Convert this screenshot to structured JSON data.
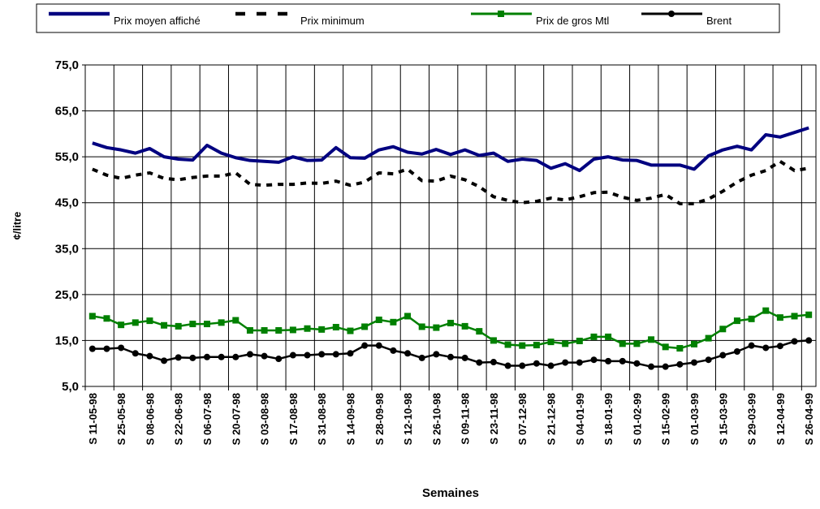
{
  "chart_data": {
    "type": "line",
    "ylabel": "¢/litre",
    "xlabel": "Semaines",
    "categories": [
      "S 11-05-98",
      null,
      "S 25-05-98",
      null,
      "S 08-06-98",
      null,
      "S 22-06-98",
      null,
      "S 06-07-98",
      null,
      "S 20-07-98",
      null,
      "S 03-08-98",
      null,
      "S 17-08-98",
      null,
      "S 31-08-98",
      null,
      "S 14-09-98",
      null,
      "S 28-09-98",
      null,
      "S 12-10-98",
      null,
      "S 26-10-98",
      null,
      "S 09-11-98",
      null,
      "S 23-11-98",
      null,
      "S 07-12-98",
      null,
      "S 21-12-98",
      null,
      "S 04-01-99",
      null,
      "S 18-01-99",
      null,
      "S 01-02-99",
      null,
      "S 15-02-99",
      null,
      "S 01-03-99",
      null,
      "S 15-03-99",
      null,
      "S 29-03-99",
      null,
      "S 12-04-99",
      null,
      "S 26-04-99"
    ],
    "ylim": [
      5,
      75
    ],
    "yticks": [
      {
        "value": 5,
        "label": "5,0"
      },
      {
        "value": 15,
        "label": "15,0"
      },
      {
        "value": 25,
        "label": "25,0"
      },
      {
        "value": 35,
        "label": "35,0"
      },
      {
        "value": 45,
        "label": "45,0"
      },
      {
        "value": 55,
        "label": "55,0"
      },
      {
        "value": 65,
        "label": "65,0"
      },
      {
        "value": 75,
        "label": "75,0"
      }
    ],
    "grid": true,
    "legend": "top",
    "series": [
      {
        "name": "Prix moyen affiché",
        "color": "#000080",
        "dash": false,
        "marker": "none",
        "width": 4,
        "values": [
          58.0,
          57.0,
          56.5,
          55.8,
          56.8,
          55.0,
          54.5,
          54.3,
          57.5,
          55.8,
          54.8,
          54.2,
          54.0,
          53.8,
          55.0,
          54.2,
          54.3,
          57.0,
          54.8,
          54.7,
          56.5,
          57.2,
          56.0,
          55.6,
          56.6,
          55.5,
          56.5,
          55.3,
          55.8,
          54.0,
          54.5,
          54.2,
          52.5,
          53.5,
          52.0,
          54.5,
          55.0,
          54.3,
          54.2,
          53.2,
          53.2,
          53.2,
          52.3,
          55.2,
          56.5,
          57.3,
          56.5,
          59.8,
          59.3,
          60.3,
          61.3
        ]
      },
      {
        "name": "Prix minimum",
        "color": "#000000",
        "dash": true,
        "marker": "none",
        "width": 4,
        "values": [
          52.3,
          51.0,
          50.3,
          51.0,
          51.5,
          50.3,
          50.0,
          50.5,
          50.8,
          50.8,
          51.5,
          49.0,
          48.8,
          49.0,
          49.0,
          49.3,
          49.2,
          49.7,
          48.8,
          49.5,
          51.5,
          51.3,
          52.3,
          49.8,
          49.7,
          50.8,
          50.0,
          48.5,
          46.3,
          45.5,
          45.0,
          45.3,
          46.0,
          45.6,
          46.3,
          47.2,
          47.3,
          46.2,
          45.5,
          46.0,
          46.8,
          44.8,
          44.8,
          45.8,
          47.5,
          49.5,
          51.0,
          52.0,
          54.0,
          52.0,
          52.5
        ]
      },
      {
        "name": "Prix de gros Mtl",
        "color": "#008000",
        "dash": false,
        "marker": "square",
        "width": 2.5,
        "values": [
          20.3,
          19.8,
          18.4,
          18.9,
          19.3,
          18.3,
          18.1,
          18.6,
          18.6,
          18.9,
          19.4,
          17.2,
          17.2,
          17.2,
          17.3,
          17.6,
          17.4,
          17.9,
          17.1,
          18.0,
          19.5,
          19.0,
          20.3,
          18.0,
          17.8,
          18.8,
          18.1,
          17.0,
          15.0,
          14.1,
          13.9,
          14.0,
          14.7,
          14.3,
          14.9,
          15.8,
          15.8,
          14.3,
          14.3,
          15.2,
          13.6,
          13.3,
          14.2,
          15.5,
          17.5,
          19.3,
          19.7,
          21.5,
          20.0,
          20.3,
          20.6
        ]
      },
      {
        "name": "Brent",
        "color": "#000000",
        "dash": false,
        "marker": "circle",
        "width": 2.5,
        "values": [
          13.2,
          13.2,
          13.4,
          12.2,
          11.6,
          10.6,
          11.3,
          11.2,
          11.4,
          11.4,
          11.4,
          12.0,
          11.6,
          11.0,
          11.8,
          11.8,
          12.0,
          12.0,
          12.2,
          13.9,
          13.9,
          12.8,
          12.2,
          11.2,
          12.0,
          11.4,
          11.2,
          10.2,
          10.3,
          9.5,
          9.5,
          10.0,
          9.5,
          10.2,
          10.2,
          10.8,
          10.5,
          10.5,
          10.0,
          9.3,
          9.3,
          9.8,
          10.2,
          10.8,
          11.8,
          12.6,
          13.9,
          13.4,
          13.8,
          14.8,
          15.0
        ]
      }
    ]
  }
}
